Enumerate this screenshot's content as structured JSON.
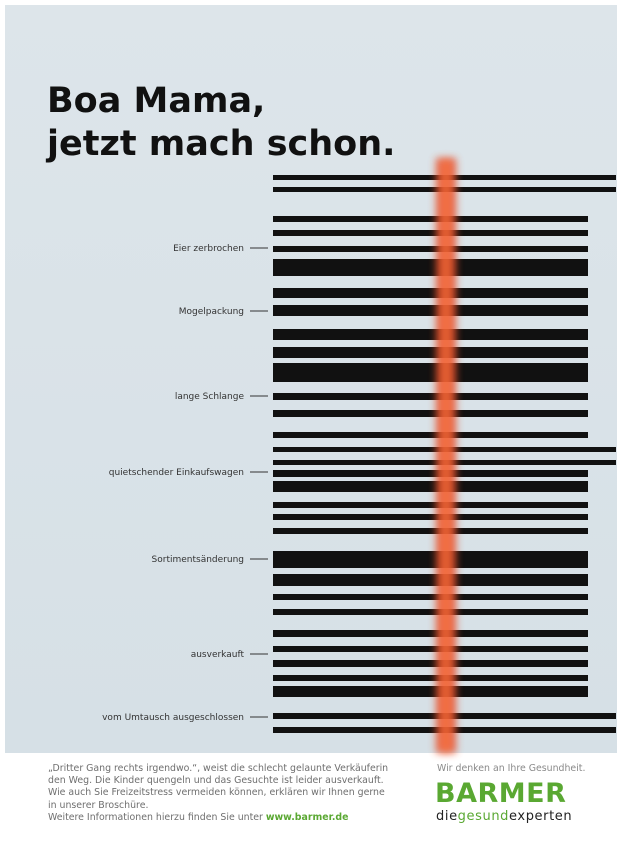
{
  "headline": [
    "Boa Mama,",
    "jetzt mach schon."
  ],
  "labels": [
    "Eier zerbrochen",
    "Mogelpackung",
    "lange Schlange",
    "quietschender Einkaufswagen",
    "Sortimentsänderung",
    "ausverkauft",
    "vom Umtausch ausgeschlossen"
  ],
  "footer": {
    "lines": [
      "„Dritter Gang rechts irgendwo.“, weist die schlecht gelaunte Verkäuferin",
      "den Weg. Die Kinder quengeln und das Gesuchte ist leider ausverkauft.",
      "Wie auch Sie Freizeitstress vermeiden können, erklären wir Ihnen gerne",
      "in unserer Broschüre.",
      "Weitere Informationen hierzu finden Sie unter"
    ],
    "link": "www.barmer.de"
  },
  "brand": {
    "tagline": "Wir denken an Ihre Gesundheit.",
    "logo": "BARMER",
    "sub": [
      "die",
      "gesund",
      "experten"
    ]
  }
}
